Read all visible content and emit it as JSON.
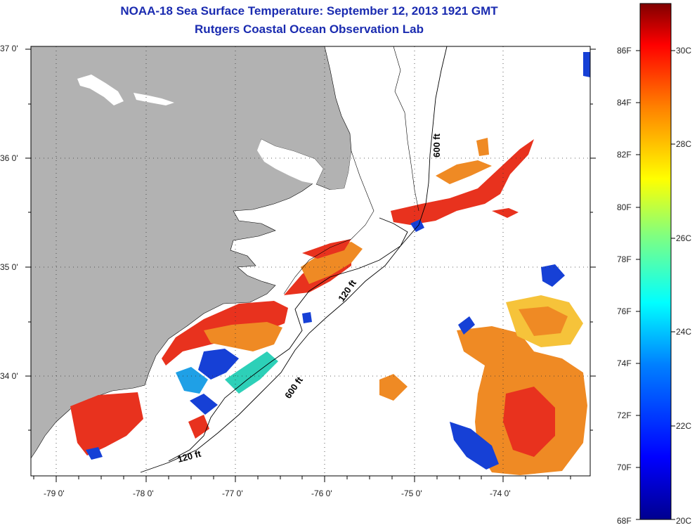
{
  "title": {
    "line1": "NOAA-18 Sea Surface Temperature:  September 12, 2013 1921 GMT",
    "line2": "Rutgers Coastal Ocean Observation Lab"
  },
  "axes": {
    "lat_labels": [
      "37 0'",
      "36 0'",
      "35 0'",
      "34 0'"
    ],
    "lon_labels": [
      "-79 0'",
      "-78 0'",
      "-77 0'",
      "-76 0'",
      "-75 0'",
      "-74 0'"
    ]
  },
  "contours": {
    "label_600_north": "600 ft",
    "label_120_mid": "120 ft",
    "label_600_south": "600 ft",
    "label_120_south": "120 ft"
  },
  "colorbar": {
    "fahrenheit_labels": [
      "86F",
      "84F",
      "82F",
      "80F",
      "78F",
      "76F",
      "74F",
      "72F",
      "70F",
      "68F"
    ],
    "celsius_labels": [
      "30C",
      "28C",
      "26C",
      "24C",
      "22C",
      "20C"
    ],
    "range_celsius": [
      20,
      31.2
    ],
    "colors": [
      "#00008f",
      "#0000ff",
      "#0080ff",
      "#00ffff",
      "#80ff80",
      "#ffff00",
      "#ff8000",
      "#ff0000",
      "#800000"
    ]
  },
  "colors": {
    "land": "#b2b2b2",
    "water": "#ffffff",
    "title": "#1a2bb0",
    "sst_warm": "#e8321e",
    "sst_orange": "#ef8a24",
    "sst_cool": "#1640d6"
  }
}
